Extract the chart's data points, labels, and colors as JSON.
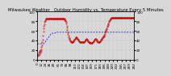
{
  "title": "Milwaukee Weather   Outdoor Humidity vs. Temperature Every 5 Minutes",
  "bg_color": "#d8d8d8",
  "plot_bg_color": "#d8d8d8",
  "red_color": "#cc0000",
  "blue_color": "#0000bb",
  "grid_color": "#aaaaaa",
  "tick_fontsize": 3.0,
  "title_fontsize": 3.8,
  "ylim": [
    0,
    100
  ],
  "n_points": 288,
  "red_y": [
    10,
    12,
    8,
    14,
    10,
    16,
    12,
    18,
    14,
    20,
    18,
    22,
    26,
    30,
    36,
    42,
    50,
    58,
    65,
    70,
    74,
    78,
    81,
    83,
    84,
    85,
    85,
    85,
    85,
    85,
    85,
    85,
    85,
    85,
    85,
    85,
    85,
    85,
    85,
    85,
    85,
    85,
    85,
    85,
    85,
    85,
    85,
    85,
    85,
    85,
    85,
    85,
    85,
    85,
    85,
    85,
    85,
    85,
    85,
    85,
    85,
    85,
    85,
    85,
    85,
    85,
    85,
    85,
    85,
    85,
    85,
    85,
    85,
    85,
    85,
    85,
    85,
    85,
    85,
    84,
    83,
    82,
    80,
    78,
    75,
    71,
    67,
    62,
    57,
    53,
    50,
    47,
    45,
    43,
    42,
    40,
    39,
    38,
    37,
    37,
    36,
    36,
    36,
    37,
    38,
    39,
    40,
    41,
    42,
    43,
    44,
    45,
    46,
    46,
    46,
    45,
    44,
    43,
    42,
    41,
    40,
    39,
    38,
    37,
    36,
    36,
    36,
    36,
    36,
    36,
    36,
    36,
    36,
    36,
    36,
    36,
    37,
    38,
    39,
    40,
    41,
    42,
    43,
    43,
    42,
    41,
    40,
    39,
    38,
    37,
    36,
    36,
    35,
    35,
    35,
    35,
    35,
    35,
    35,
    35,
    35,
    36,
    37,
    38,
    39,
    40,
    41,
    42,
    43,
    43,
    43,
    42,
    41,
    40,
    39,
    38,
    37,
    37,
    37,
    37,
    37,
    37,
    38,
    39,
    40,
    41,
    42,
    43,
    44,
    45,
    46,
    47,
    48,
    49,
    50,
    52,
    54,
    56,
    58,
    60,
    62,
    64,
    66,
    68,
    70,
    72,
    74,
    76,
    78,
    80,
    82,
    83,
    84,
    85,
    86,
    87,
    88,
    88,
    88,
    88,
    88,
    88,
    88,
    88,
    88,
    88,
    88,
    88,
    88,
    88,
    88,
    88,
    88,
    88,
    88,
    88,
    88,
    88,
    88,
    88,
    88,
    88,
    88,
    88,
    88,
    88,
    88,
    88,
    88,
    88,
    88,
    88,
    88,
    88,
    88,
    88,
    88,
    88,
    88,
    88,
    88,
    88,
    88,
    88,
    88,
    88,
    88,
    88,
    88,
    88,
    88,
    88,
    88,
    88,
    88,
    88,
    88,
    88,
    88,
    88,
    88,
    88,
    88
  ],
  "blue_y": [
    33,
    33,
    33,
    33,
    33,
    33,
    33,
    33,
    33,
    33,
    33,
    33,
    33,
    33,
    33,
    33,
    33,
    33,
    33,
    33,
    34,
    35,
    36,
    37,
    38,
    39,
    40,
    41,
    42,
    43,
    44,
    45,
    46,
    47,
    48,
    49,
    50,
    51,
    52,
    53,
    54,
    55,
    55,
    55,
    55,
    55,
    55,
    55,
    55,
    55,
    55,
    55,
    56,
    56,
    56,
    56,
    56,
    57,
    57,
    57,
    57,
    57,
    57,
    57,
    57,
    57,
    57,
    57,
    57,
    57,
    57,
    57,
    57,
    57,
    57,
    57,
    57,
    57,
    57,
    57,
    57,
    57,
    57,
    57,
    57,
    57,
    57,
    57,
    57,
    57,
    57,
    57,
    57,
    57,
    57,
    57,
    57,
    57,
    57,
    57,
    57,
    57,
    57,
    57,
    57,
    57,
    57,
    57,
    57,
    57,
    57,
    57,
    57,
    57,
    57,
    57,
    57,
    57,
    57,
    57,
    57,
    57,
    57,
    57,
    57,
    57,
    57,
    57,
    57,
    57,
    57,
    57,
    57,
    57,
    57,
    57,
    57,
    57,
    57,
    57,
    57,
    57,
    57,
    57,
    57,
    57,
    57,
    57,
    57,
    57,
    57,
    57,
    57,
    57,
    57,
    57,
    57,
    57,
    57,
    57,
    57,
    57,
    57,
    57,
    57,
    57,
    57,
    57,
    57,
    57,
    57,
    57,
    57,
    57,
    57,
    57,
    57,
    57,
    57,
    57,
    57,
    57,
    57,
    57,
    57,
    57,
    57,
    57,
    57,
    57,
    57,
    57,
    57,
    57,
    57,
    57,
    57,
    57,
    57,
    57,
    57,
    57,
    57,
    57,
    57,
    57,
    57,
    57,
    57,
    57,
    57,
    57,
    57,
    57,
    57,
    57,
    57,
    57,
    57,
    57,
    57,
    57,
    57,
    57,
    57,
    57,
    57,
    57,
    57,
    57,
    57,
    57,
    57,
    57,
    57,
    57,
    57,
    57,
    57,
    57,
    57,
    57,
    57,
    57,
    57,
    57,
    57,
    57,
    57,
    57,
    57,
    57,
    57,
    57,
    57,
    57,
    57,
    57,
    57,
    57,
    57,
    57,
    57,
    57,
    57,
    57,
    57,
    57,
    57,
    57,
    57,
    57,
    57,
    57,
    57,
    57,
    57,
    57,
    57,
    57,
    57,
    57,
    57
  ],
  "left_yticks": [
    0,
    20,
    40,
    60,
    80,
    100
  ],
  "right_yticks": [
    0,
    20,
    40,
    60,
    80,
    100
  ]
}
